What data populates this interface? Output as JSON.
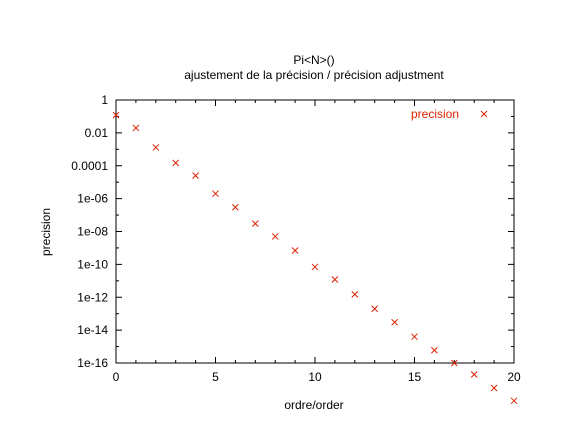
{
  "chart_data": {
    "type": "scatter",
    "title": "Pi<N>()",
    "subtitle": "ajustement de la précision / précision adjustment",
    "xlabel": "ordre/order",
    "ylabel": "precision",
    "xlim": [
      0,
      20
    ],
    "ylim_log10": [
      -16,
      0
    ],
    "y_scale": "log",
    "grid": false,
    "legend_position": "top-right",
    "x_ticks": [
      0,
      5,
      10,
      15,
      20
    ],
    "x_tick_labels": [
      "0",
      "5",
      "10",
      "15",
      "20"
    ],
    "y_ticks_log10": [
      0,
      -2,
      -4,
      -6,
      -8,
      -10,
      -12,
      -14,
      -16
    ],
    "y_tick_labels": [
      "1",
      "0.01",
      "0.0001",
      "1e-06",
      "1e-08",
      "1e-10",
      "1e-12",
      "1e-14",
      "1e-16"
    ],
    "series": [
      {
        "name": "precision",
        "color": "#dd2200",
        "marker": "x",
        "x": [
          0,
          1,
          2,
          3,
          4,
          5,
          6,
          7,
          8,
          9,
          10,
          11,
          12,
          13,
          14,
          15,
          16,
          17,
          18,
          19,
          20
        ],
        "y": [
          0.12,
          0.02,
          0.0013,
          0.00015,
          2.5e-05,
          2e-06,
          3e-07,
          3e-08,
          5e-09,
          7e-10,
          7e-11,
          1.2e-11,
          1.5e-12,
          2e-13,
          3e-14,
          4e-15,
          6e-16,
          1e-16,
          2e-17,
          3e-18,
          5e-19
        ]
      }
    ]
  }
}
